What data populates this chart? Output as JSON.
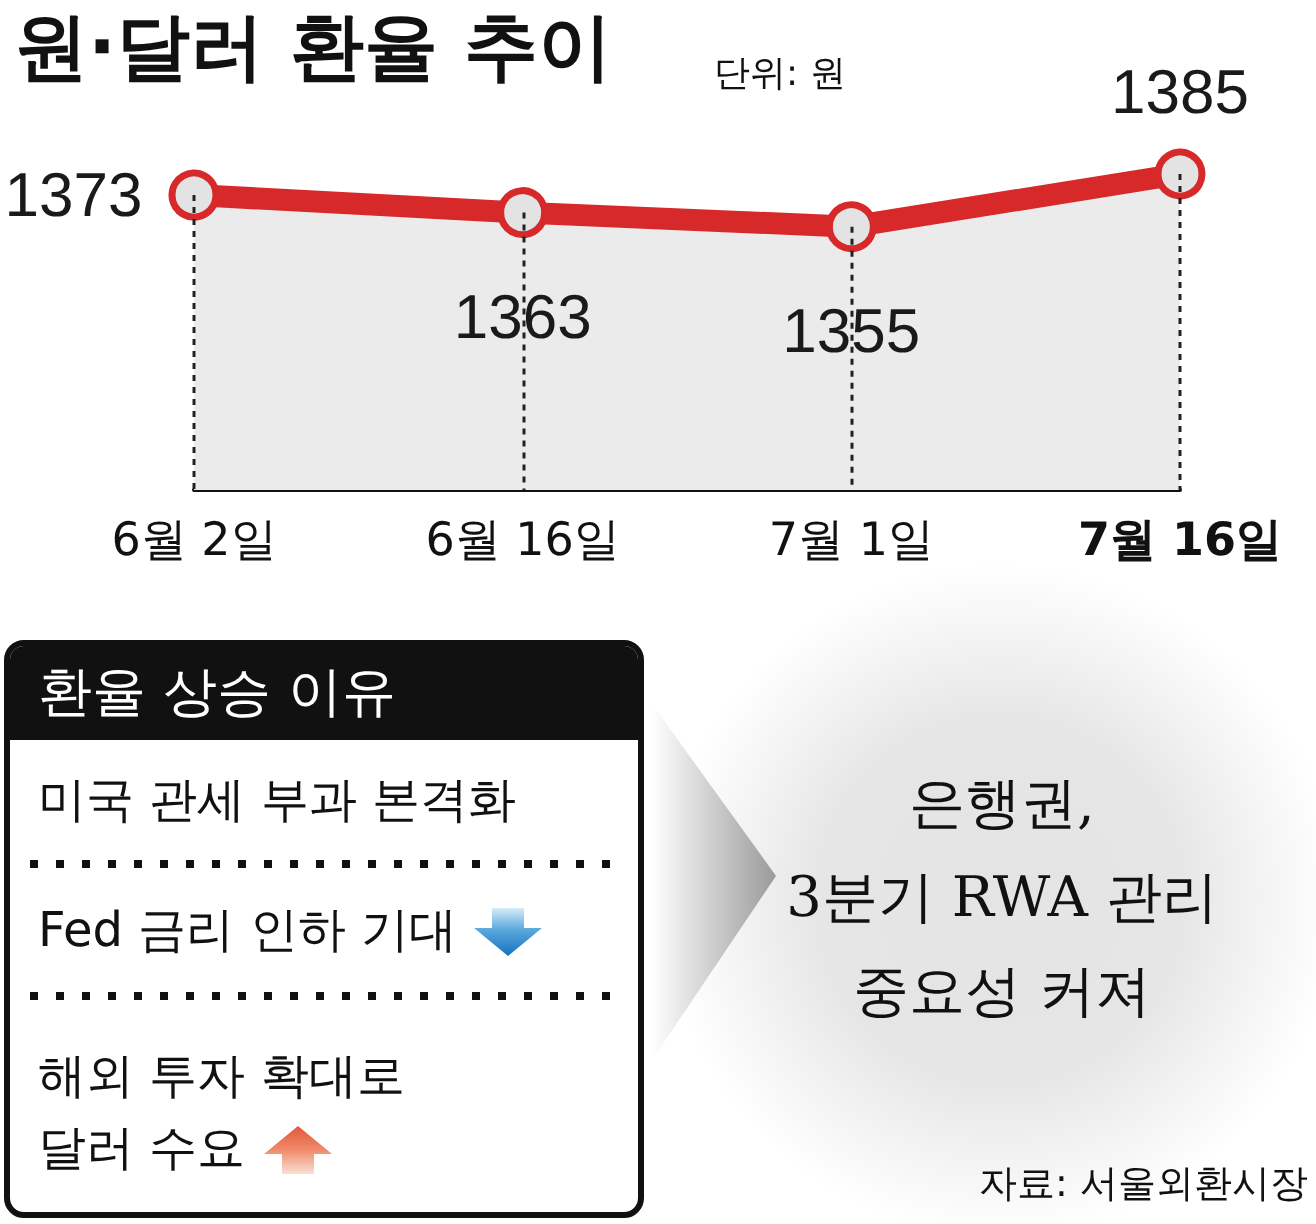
{
  "chart_data": [
    {
      "type": "line",
      "title": "원·달러 환율 추이",
      "subtitle": "단위: 원",
      "categories": [
        "6월 2일",
        "6월 16일",
        "7월 1일",
        "7월 16일"
      ],
      "values": [
        1373,
        1363,
        1355,
        1385
      ],
      "color": "#d7282a",
      "tick_labels": "x",
      "data_labels": true,
      "marker": "circle",
      "grid": "x"
    },
    {
      "type": "other",
      "title": "환율 상승 이유",
      "annotations": [
        "미국 관세 부과 본격화",
        "Fed 금리 인하 기대",
        "해외 투자 확대로\n달러 수요"
      ]
    },
    {
      "type": "other",
      "title": "은행권,\n3분기 RWA 관리\n중요성 커져",
      "annotations": [
        "자료: 서울외환시장"
      ]
    }
  ]
}
